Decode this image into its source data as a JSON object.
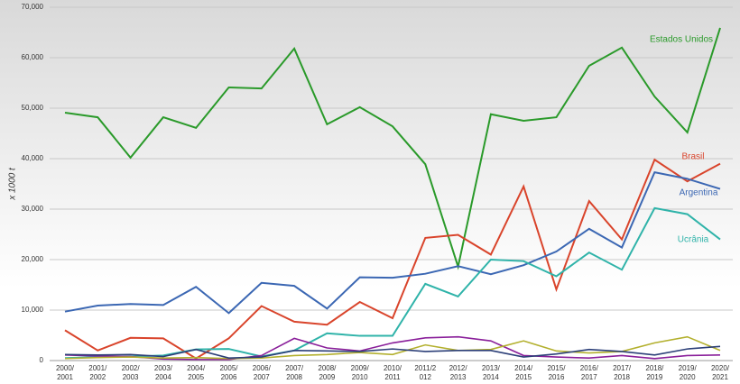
{
  "chart_data": {
    "type": "line",
    "y_label": "x 1000 t",
    "categories": [
      "2000/2001",
      "2001/2002",
      "2002/2003",
      "2003/2004",
      "2004/2005",
      "2005/2006",
      "2006/2007",
      "2007/2008",
      "2008/2009",
      "2009/2010",
      "2010/2011",
      "2011/2012",
      "2012/2013",
      "2013/2014",
      "2014/2015",
      "2015/2016",
      "2016/2017",
      "2017/2018",
      "2018/2019",
      "2019/2020",
      "2020/2021"
    ],
    "ylim": [
      0,
      70000
    ],
    "yticks": [
      0,
      {
        "value": 10000,
        "label": "10,000"
      },
      {
        "value": 20000,
        "label": "20,000"
      },
      {
        "value": 30000,
        "label": "30,000"
      },
      {
        "value": 40000,
        "label": "40,000"
      },
      {
        "value": 50000,
        "label": "50,000"
      },
      {
        "value": 60000,
        "label": "60,000"
      },
      {
        "value": 70000,
        "label": "70,000"
      }
    ],
    "grid": true,
    "series": [
      {
        "name": "Estados Unidos",
        "color": "#2a9a2a",
        "values": [
          49100,
          48200,
          40200,
          48200,
          46100,
          54100,
          53900,
          61800,
          46800,
          50200,
          46400,
          38900,
          18600,
          48800,
          47500,
          48200,
          58400,
          62000,
          52300,
          45200,
          65900
        ]
      },
      {
        "name": "Brasil",
        "color": "#d9442b",
        "values": [
          6000,
          2000,
          4500,
          4400,
          400,
          4400,
          10800,
          7700,
          7100,
          11600,
          8400,
          24300,
          24900,
          21000,
          34500,
          14100,
          31600,
          24000,
          39800,
          35500,
          39000
        ]
      },
      {
        "name": "Argentina",
        "color": "#3b67b3",
        "values": [
          9700,
          10900,
          11200,
          11000,
          14600,
          9400,
          15400,
          14800,
          10300,
          16500,
          16400,
          17200,
          18700,
          17100,
          18900,
          21600,
          26100,
          22400,
          37300,
          36000,
          34000
        ]
      },
      {
        "name": "Ucrânia",
        "color": "#2fb3a9",
        "values": [
          500,
          700,
          800,
          1000,
          2200,
          2300,
          800,
          2000,
          5400,
          4900,
          4900,
          15200,
          12700,
          20000,
          19700,
          16700,
          21400,
          18000,
          30200,
          29000,
          24000
        ]
      },
      {
        "color": "#8a1f9a",
        "values": [
          1100,
          900,
          800,
          300,
          200,
          200,
          1000,
          4400,
          2500,
          1900,
          3500,
          4500,
          4700,
          3900,
          1000,
          700,
          500,
          1000,
          400,
          1000,
          1100
        ]
      },
      {
        "color": "#b3b02e",
        "values": [
          400,
          600,
          700,
          500,
          600,
          400,
          500,
          1000,
          1200,
          1600,
          1200,
          3100,
          2000,
          2200,
          3900,
          1900,
          1500,
          1800,
          3500,
          4700,
          2000
        ]
      },
      {
        "color": "#2c3f78",
        "values": [
          1200,
          1100,
          1200,
          800,
          2200,
          500,
          700,
          2000,
          1900,
          1800,
          2300,
          1800,
          2000,
          2000,
          700,
          1300,
          2200,
          1800,
          1100,
          2300,
          2800
        ]
      }
    ]
  }
}
